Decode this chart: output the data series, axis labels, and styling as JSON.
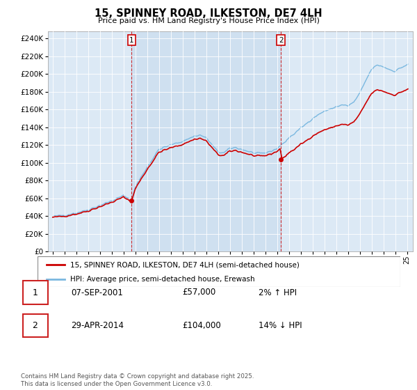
{
  "title": "15, SPINNEY ROAD, ILKESTON, DE7 4LH",
  "subtitle": "Price paid vs. HM Land Registry's House Price Index (HPI)",
  "legend_line1": "15, SPINNEY ROAD, ILKESTON, DE7 4LH (semi-detached house)",
  "legend_line2": "HPI: Average price, semi-detached house, Erewash",
  "annotation1_date": "07-SEP-2001",
  "annotation1_price": "£57,000",
  "annotation1_hpi": "2% ↑ HPI",
  "annotation2_date": "29-APR-2014",
  "annotation2_price": "£104,000",
  "annotation2_hpi": "14% ↓ HPI",
  "footer": "Contains HM Land Registry data © Crown copyright and database right 2025.\nThis data is licensed under the Open Government Licence v3.0.",
  "price_color": "#cc0000",
  "hpi_color": "#7ab8e0",
  "shade_color": "#cfe0f0",
  "plot_bg_color": "#dce9f5",
  "ylim": [
    0,
    248000
  ],
  "xlim_min": 1994.6,
  "xlim_max": 2025.5,
  "sale1_year": 2001.69,
  "sale1_price": 57000,
  "sale2_year": 2014.33,
  "sale2_price": 104000
}
